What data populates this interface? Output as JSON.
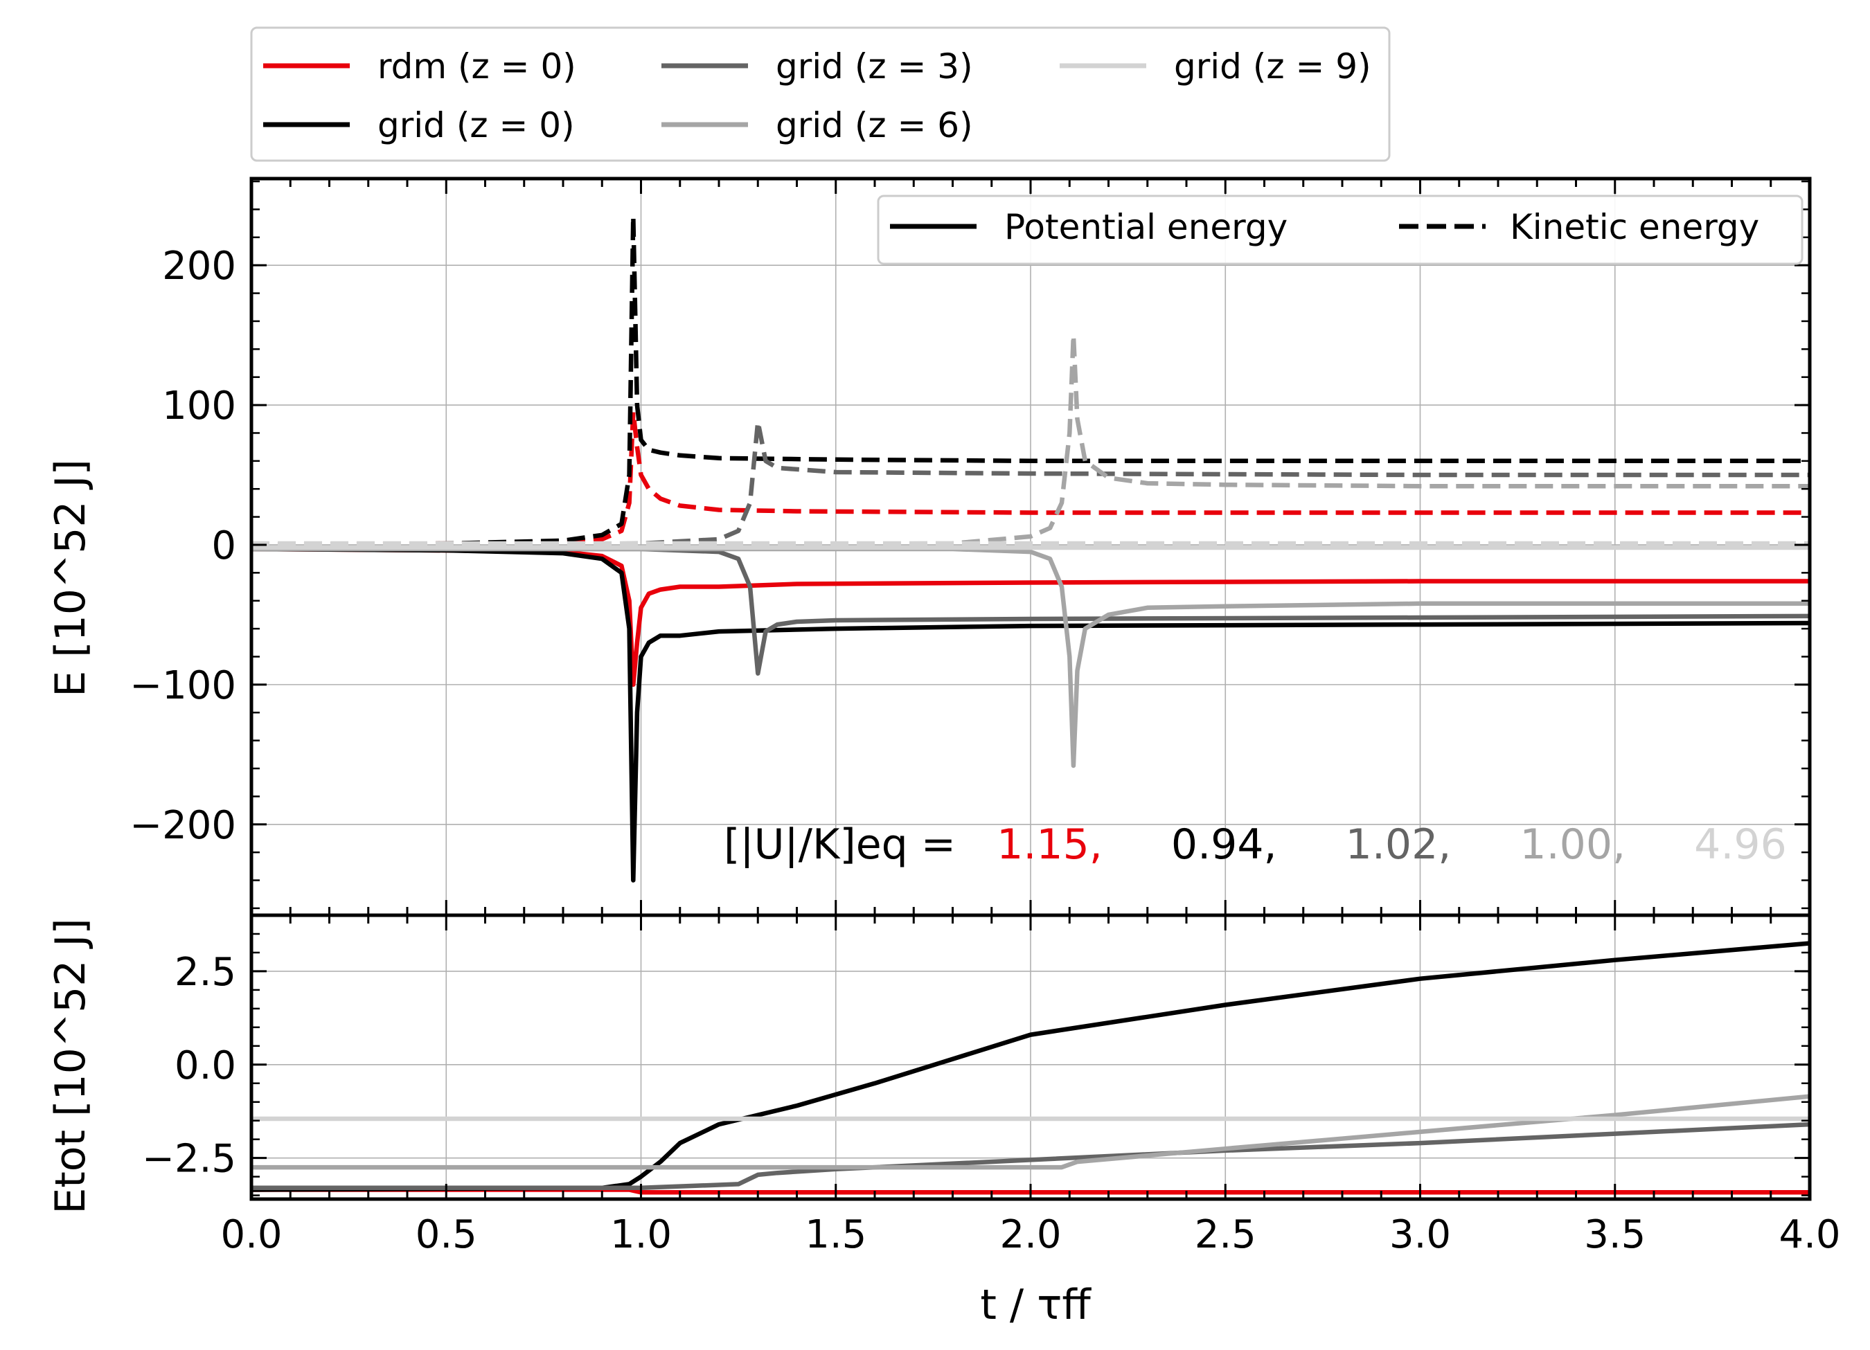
{
  "colors": {
    "rdm": "#e8000b",
    "grid_z0": "#000000",
    "grid_z3": "#646464",
    "grid_z6": "#a5a5a5",
    "grid_z9": "#d3d3d3"
  },
  "top_legend": [
    {
      "label": "rdm (z = 0)",
      "color": "#e8000b"
    },
    {
      "label": "grid (z = 0)",
      "color": "#000000"
    },
    {
      "label": "grid (z = 3)",
      "color": "#646464"
    },
    {
      "label": "grid (z = 6)",
      "color": "#a5a5a5"
    },
    {
      "label": "grid (z = 9)",
      "color": "#d3d3d3"
    }
  ],
  "style_legend": [
    {
      "label": "Potential energy",
      "style": "solid"
    },
    {
      "label": "Kinetic energy",
      "style": "dashed"
    }
  ],
  "ratio_annotation": {
    "prefix": "[|U|/K]eq =",
    "values": [
      {
        "text": "1.15,",
        "color": "#e8000b"
      },
      {
        "text": "0.94,",
        "color": "#000000"
      },
      {
        "text": "1.02,",
        "color": "#646464"
      },
      {
        "text": "1.00,",
        "color": "#a5a5a5"
      },
      {
        "text": "4.96",
        "color": "#d3d3d3"
      }
    ]
  },
  "chart_data": [
    {
      "type": "line",
      "panel": "top",
      "xlabel": "t / τff",
      "ylabel": "E [10^52 J]",
      "xlim": [
        0,
        4
      ],
      "ylim": [
        -265,
        262
      ],
      "xticks": [
        "0.0",
        "0.5",
        "1.0",
        "1.5",
        "2.0",
        "2.5",
        "3.0",
        "3.5",
        "4.0"
      ],
      "yticks": [
        "200",
        "100",
        "0",
        "−100",
        "−200"
      ],
      "grid": true,
      "legend_position": "top-right",
      "series": [
        {
          "name": "rdm (z = 0)",
          "quantity": "Potential energy",
          "color": "#e8000b",
          "dash": false,
          "x": [
            0,
            0.5,
            0.8,
            0.9,
            0.95,
            0.97,
            0.98,
            0.99,
            1.0,
            1.02,
            1.05,
            1.1,
            1.2,
            1.4,
            2.0,
            3.0,
            4.0
          ],
          "y": [
            -3,
            -4,
            -5,
            -8,
            -15,
            -40,
            -100,
            -70,
            -45,
            -35,
            -32,
            -30,
            -30,
            -28,
            -27,
            -26,
            -26
          ]
        },
        {
          "name": "rdm (z = 0)",
          "quantity": "Kinetic energy",
          "color": "#e8000b",
          "dash": true,
          "x": [
            0,
            0.5,
            0.8,
            0.9,
            0.95,
            0.97,
            0.98,
            0.99,
            1.0,
            1.02,
            1.05,
            1.1,
            1.2,
            1.4,
            2.0,
            3.0,
            4.0
          ],
          "y": [
            0,
            1,
            2,
            4,
            10,
            30,
            95,
            70,
            50,
            40,
            33,
            28,
            25,
            24,
            23,
            23,
            23
          ]
        },
        {
          "name": "grid (z = 0)",
          "quantity": "Potential energy",
          "color": "#000000",
          "dash": false,
          "x": [
            0,
            0.5,
            0.8,
            0.9,
            0.95,
            0.97,
            0.98,
            0.99,
            1.0,
            1.02,
            1.05,
            1.1,
            1.2,
            1.5,
            2.0,
            3.0,
            4.0
          ],
          "y": [
            -3,
            -4,
            -6,
            -10,
            -20,
            -60,
            -240,
            -120,
            -80,
            -70,
            -65,
            -65,
            -62,
            -60,
            -58,
            -57,
            -56
          ]
        },
        {
          "name": "grid (z = 0)",
          "quantity": "Kinetic energy",
          "color": "#000000",
          "dash": true,
          "x": [
            0,
            0.5,
            0.8,
            0.9,
            0.95,
            0.97,
            0.98,
            0.99,
            1.0,
            1.02,
            1.05,
            1.1,
            1.2,
            1.5,
            2.0,
            3.0,
            4.0
          ],
          "y": [
            0,
            1,
            3,
            7,
            15,
            50,
            235,
            100,
            75,
            68,
            66,
            64,
            62,
            61,
            60,
            60,
            60
          ]
        },
        {
          "name": "grid (z = 3)",
          "quantity": "Potential energy",
          "color": "#646464",
          "dash": false,
          "x": [
            0,
            0.5,
            1.0,
            1.2,
            1.25,
            1.28,
            1.3,
            1.32,
            1.35,
            1.4,
            1.5,
            2.0,
            3.0,
            4.0
          ],
          "y": [
            -3,
            -3,
            -3,
            -5,
            -10,
            -30,
            -92,
            -62,
            -57,
            -55,
            -54,
            -53,
            -52,
            -51
          ]
        },
        {
          "name": "grid (z = 3)",
          "quantity": "Kinetic energy",
          "color": "#646464",
          "dash": true,
          "x": [
            0,
            0.5,
            1.0,
            1.2,
            1.25,
            1.28,
            1.3,
            1.32,
            1.35,
            1.4,
            1.5,
            2.0,
            3.0,
            4.0
          ],
          "y": [
            0,
            0,
            1,
            4,
            10,
            30,
            88,
            60,
            55,
            54,
            52,
            51,
            50,
            50
          ]
        },
        {
          "name": "grid (z = 6)",
          "quantity": "Potential energy",
          "color": "#a5a5a5",
          "dash": false,
          "x": [
            0,
            1.0,
            1.8,
            2.0,
            2.05,
            2.08,
            2.1,
            2.11,
            2.12,
            2.14,
            2.2,
            2.3,
            2.5,
            3.0,
            4.0
          ],
          "y": [
            -3,
            -3,
            -3,
            -5,
            -10,
            -30,
            -80,
            -158,
            -90,
            -60,
            -50,
            -45,
            -44,
            -42,
            -42
          ]
        },
        {
          "name": "grid (z = 6)",
          "quantity": "Kinetic energy",
          "color": "#a5a5a5",
          "dash": true,
          "x": [
            0,
            1.0,
            1.8,
            2.0,
            2.05,
            2.08,
            2.1,
            2.11,
            2.12,
            2.14,
            2.2,
            2.3,
            2.5,
            3.0,
            4.0
          ],
          "y": [
            0,
            0,
            1,
            6,
            12,
            30,
            80,
            150,
            90,
            60,
            48,
            44,
            43,
            42,
            42
          ]
        },
        {
          "name": "grid (z = 9)",
          "quantity": "Potential energy",
          "color": "#d3d3d3",
          "dash": false,
          "x": [
            0,
            4.0
          ],
          "y": [
            -2,
            -2
          ]
        },
        {
          "name": "grid (z = 9)",
          "quantity": "Kinetic energy",
          "color": "#d3d3d3",
          "dash": true,
          "x": [
            0,
            4.0
          ],
          "y": [
            1,
            1
          ]
        }
      ]
    },
    {
      "type": "line",
      "panel": "bottom",
      "xlabel": "t / τff",
      "ylabel": "Etot [10^52 J]",
      "xlim": [
        0,
        4
      ],
      "ylim": [
        -3.6,
        4.0
      ],
      "xticks": [
        "0.0",
        "0.5",
        "1.0",
        "1.5",
        "2.0",
        "2.5",
        "3.0",
        "3.5",
        "4.0"
      ],
      "yticks": [
        "2.5",
        "0.0",
        "−2.5"
      ],
      "grid": true,
      "series": [
        {
          "name": "rdm (z = 0)",
          "color": "#e8000b",
          "x": [
            0,
            0.97,
            1.0,
            4.0
          ],
          "y": [
            -3.35,
            -3.35,
            -3.42,
            -3.42
          ]
        },
        {
          "name": "grid (z = 0)",
          "color": "#000000",
          "x": [
            0,
            0.9,
            0.97,
            1.0,
            1.05,
            1.1,
            1.2,
            1.4,
            1.6,
            2.0,
            2.5,
            3.0,
            3.5,
            4.0
          ],
          "y": [
            -3.35,
            -3.3,
            -3.2,
            -3.0,
            -2.6,
            -2.1,
            -1.6,
            -1.1,
            -0.5,
            0.8,
            1.6,
            2.3,
            2.8,
            3.25
          ]
        },
        {
          "name": "grid (z = 3)",
          "color": "#646464",
          "x": [
            0,
            1.0,
            1.25,
            1.3,
            1.35,
            1.5,
            2.0,
            2.5,
            3.0,
            3.5,
            4.0
          ],
          "y": [
            -3.3,
            -3.3,
            -3.2,
            -2.95,
            -2.9,
            -2.8,
            -2.55,
            -2.3,
            -2.1,
            -1.85,
            -1.6
          ]
        },
        {
          "name": "grid (z = 6)",
          "color": "#a5a5a5",
          "x": [
            0,
            2.08,
            2.12,
            2.5,
            3.0,
            3.5,
            4.0
          ],
          "y": [
            -2.75,
            -2.75,
            -2.6,
            -2.25,
            -1.8,
            -1.35,
            -0.85
          ]
        },
        {
          "name": "grid (z = 9)",
          "color": "#d3d3d3",
          "x": [
            0,
            4.0
          ],
          "y": [
            -1.45,
            -1.45
          ]
        }
      ]
    }
  ]
}
